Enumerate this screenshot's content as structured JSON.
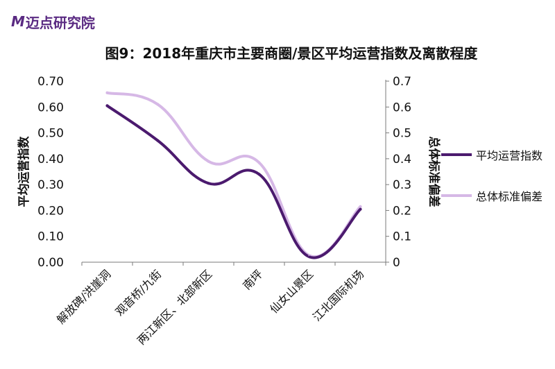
{
  "logo": {
    "mark": "M",
    "text": "迈点研究院"
  },
  "title": "图9：2018年重庆市主要商圈/景区平均运营指数及离散程度",
  "colors": {
    "series1": "#4b1a6e",
    "series2": "#d6b8e6",
    "axis": "#7a7a7a"
  },
  "chart_data": {
    "type": "line",
    "smooth": true,
    "categories": [
      "解放碑/洪崖洞",
      "观音桥/九街",
      "两江新区、北部新区",
      "南坪",
      "仙女山景区",
      "江北国际机场"
    ],
    "series": [
      {
        "name": "平均运营指数",
        "axis": "left",
        "values": [
          0.605,
          0.47,
          0.305,
          0.34,
          0.02,
          0.205
        ]
      },
      {
        "name": "总体标准偏差",
        "axis": "right",
        "values": [
          0.655,
          0.61,
          0.39,
          0.385,
          0.025,
          0.215
        ]
      }
    ],
    "y_left": {
      "label": "平均运营指数",
      "ylim": [
        0,
        0.7
      ],
      "ticks": [
        "0.00",
        "0.10",
        "0.20",
        "0.30",
        "0.40",
        "0.50",
        "0.60",
        "0.70"
      ]
    },
    "y_right": {
      "label": "总体标准偏差",
      "ylim": [
        0,
        0.7
      ],
      "ticks": [
        "0",
        "0.1",
        "0.2",
        "0.3",
        "0.4",
        "0.5",
        "0.6",
        "0.7"
      ]
    },
    "legend_position": "right",
    "grid": false
  }
}
